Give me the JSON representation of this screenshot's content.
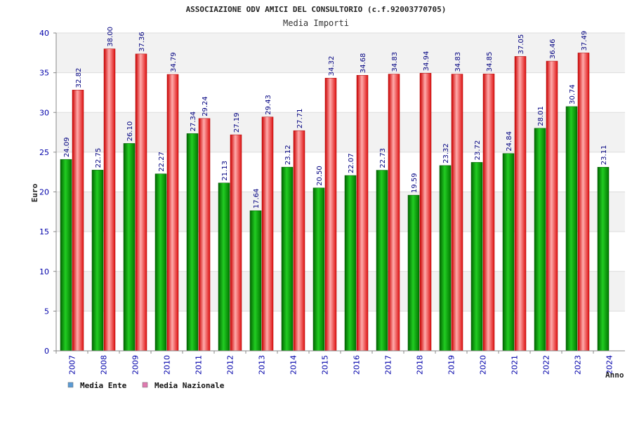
{
  "chart_data": {
    "type": "bar",
    "title": "ASSOCIAZIONE ODV AMICI DEL CONSULTORIO (c.f.92003770705)",
    "subtitle": "Media Importi",
    "xlabel": "Anno",
    "ylabel": "Euro",
    "ylim": [
      0,
      40
    ],
    "yticks": [
      0,
      5,
      10,
      15,
      20,
      25,
      30,
      35,
      40
    ],
    "grid": true,
    "legend_position": "bottom-left",
    "categories": [
      "2007",
      "2008",
      "2009",
      "2010",
      "2011",
      "2012",
      "2013",
      "2014",
      "2015",
      "2016",
      "2017",
      "2018",
      "2019",
      "2020",
      "2021",
      "2022",
      "2023",
      "2024"
    ],
    "series": [
      {
        "name": "Media Ente",
        "color": "#00aa00",
        "legend_color": "#5b9bd5",
        "values": [
          24.09,
          22.75,
          26.1,
          22.27,
          27.34,
          21.13,
          17.64,
          23.12,
          20.5,
          22.07,
          22.73,
          19.59,
          23.32,
          23.72,
          24.84,
          28.01,
          30.74,
          23.11
        ],
        "labels": [
          "24.09",
          "22.75",
          "26.10",
          "22.27",
          "27.34",
          "21.13",
          "17.64",
          "23.12",
          "20.50",
          "22.07",
          "22.73",
          "19.59",
          "23.32",
          "23.72",
          "24.84",
          "28.01",
          "30.74",
          "23.11"
        ]
      },
      {
        "name": "Media Nazionale",
        "color": "#ee1111",
        "legend_color": "#e07ab0",
        "values": [
          32.82,
          38.0,
          37.36,
          34.79,
          29.24,
          27.19,
          29.43,
          27.71,
          34.32,
          34.68,
          34.83,
          34.94,
          34.83,
          34.85,
          37.05,
          36.46,
          37.49,
          null
        ],
        "labels": [
          "32.82",
          "38.00",
          "37.36",
          "34.79",
          "29.24",
          "27.19",
          "29.43",
          "27.71",
          "34.32",
          "34.68",
          "34.83",
          "34.94",
          "34.83",
          "34.85",
          "37.05",
          "36.46",
          "37.49",
          ""
        ]
      }
    ]
  }
}
